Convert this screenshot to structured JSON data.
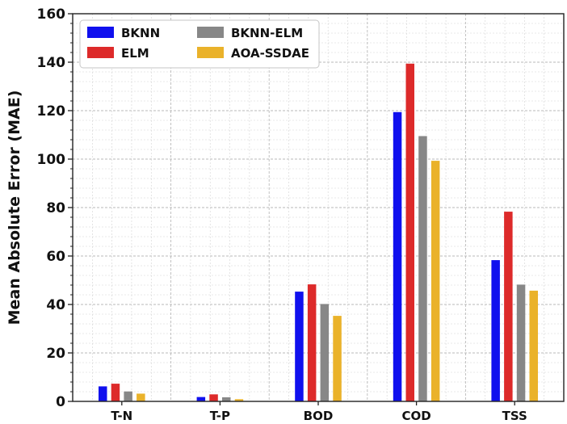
{
  "chart_data": {
    "type": "bar",
    "title": "",
    "xlabel": "",
    "ylabel": "Mean Absolute Error (MAE)",
    "ylim": [
      0,
      160
    ],
    "yticks": [
      0,
      20,
      40,
      60,
      80,
      100,
      120,
      140,
      160
    ],
    "grid": true,
    "legend_position": "top-left",
    "categories": [
      "T-N",
      "T-P",
      "BOD",
      "COD",
      "TSS"
    ],
    "series": [
      {
        "name": "BKNN",
        "color": "#1010ee",
        "values": [
          6.2,
          1.8,
          45.3,
          119.4,
          58.3
        ]
      },
      {
        "name": "ELM",
        "color": "#dd2a2a",
        "values": [
          7.3,
          2.9,
          48.3,
          139.4,
          78.3
        ]
      },
      {
        "name": "BKNN-ELM",
        "color": "#878787",
        "values": [
          4.1,
          1.7,
          40.2,
          109.5,
          48.2
        ]
      },
      {
        "name": "AOA-SSDAE",
        "color": "#eab22a",
        "values": [
          3.2,
          0.9,
          35.3,
          99.3,
          45.7
        ]
      }
    ]
  }
}
